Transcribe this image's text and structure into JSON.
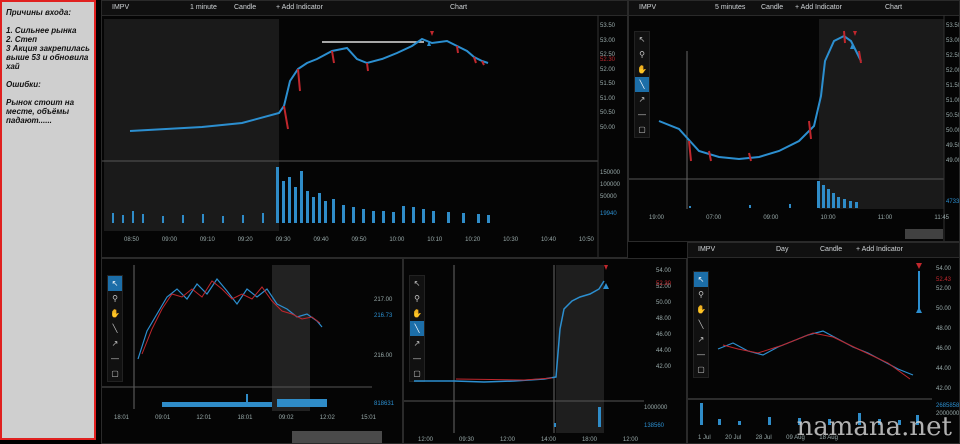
{
  "notes": {
    "title": "Причины входа:",
    "reasons": "1. Сильнее рынка\n2. Степ\n3 Акция закрепилась выше 53 и обновила хай",
    "errors_title": "Ошибки:",
    "errors": "Рынок стоит на месте, объёмы падают......"
  },
  "panel1": {
    "ticker": "IMPV",
    "interval": "1 minute",
    "type": "Candle",
    "add": "+ Add Indicator",
    "title": "Chart",
    "yticks": [
      "53.50",
      "53.00",
      "52.50",
      "52.00",
      "51.50",
      "51.00",
      "50.50",
      "50.00"
    ],
    "price_label": "52.30",
    "vticks": [
      "150000",
      "100000",
      "50000"
    ],
    "vol_label": "19940",
    "xticks": [
      "08:50",
      "09:00",
      "09:10",
      "09:20",
      "09:30",
      "09:40",
      "09:50",
      "10:00",
      "10:10",
      "10:20",
      "10:30",
      "10:40",
      "10:50"
    ]
  },
  "panel2": {
    "ticker": "IMPV",
    "interval": "5 minutes",
    "type": "Candle",
    "add": "+ Add Indicator",
    "title": "Chart",
    "yticks": [
      "53.50",
      "53.00",
      "52.50",
      "52.00",
      "51.50",
      "51.00",
      "50.50",
      "50.00",
      "49.50",
      "49.00"
    ],
    "price_label": "52.30",
    "vol_label": "4733",
    "xticks": [
      "19:00",
      "07:00",
      "09:00",
      "10:00",
      "11:00",
      "11:45"
    ]
  },
  "panel3": {
    "yticks": [
      "217.00",
      "216.00"
    ],
    "price_label": "216.73",
    "vol_label": "818631",
    "xticks": [
      "18:01",
      "09:01",
      "12:01",
      "18:01",
      "09:02",
      "12:02",
      "15:01"
    ]
  },
  "panel4": {
    "yticks": [
      "54.00",
      "52.00",
      "50.00",
      "48.00",
      "46.00",
      "44.00",
      "42.00"
    ],
    "price_label": "52.30",
    "vticks": [
      "1000000"
    ],
    "vol_label": "138560",
    "xticks": [
      "12:00",
      "09:30",
      "12:00",
      "14:00",
      "18:00",
      "12:00"
    ]
  },
  "panel5": {
    "ticker": "IMPV",
    "interval": "Day",
    "type": "Candle",
    "add": "+ Add Indicator",
    "yticks": [
      "54.00",
      "52.00",
      "50.00",
      "48.00",
      "46.00",
      "44.00",
      "42.00"
    ],
    "price_label": "52.43",
    "vticks": [
      "2000000"
    ],
    "vol_label": "2685858",
    "xticks": [
      "1 Jul",
      "20 Jul",
      "28 Jul",
      "09 Aug",
      "18 Aug"
    ]
  },
  "watermark": "namana.net",
  "colors": {
    "up": "#2c8fd0",
    "down": "#c0272d",
    "volume": "#2f8cc8",
    "notes_border": "#e0201f",
    "tool_selected": "#1c6ea8"
  },
  "tool_icons": [
    "cursor-icon",
    "zoom-icon",
    "hand-icon",
    "line-icon",
    "arrow-icon",
    "hline-icon",
    "rect-icon"
  ]
}
